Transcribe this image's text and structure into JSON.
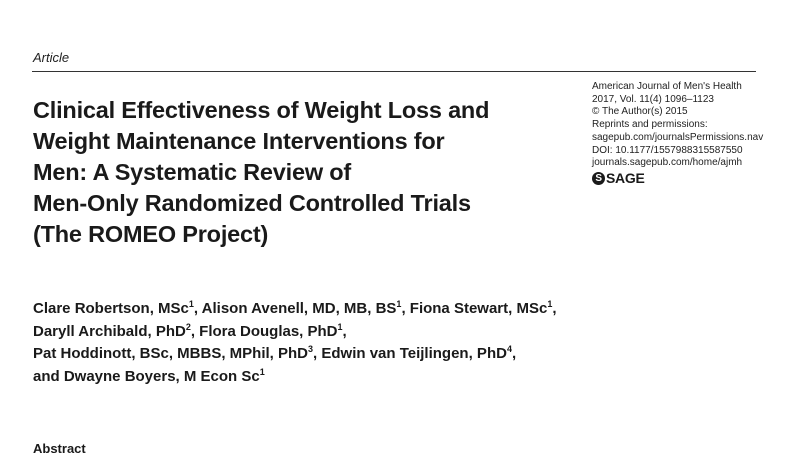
{
  "article_type": "Article",
  "journal": {
    "name": "American Journal of Men's Health",
    "citation": "2017, Vol. 11(4) 1096–1123",
    "copyright": "© The Author(s) 2015",
    "reprints_label": "Reprints and permissions:",
    "reprints_url": "sagepub.com/journalsPermissions.nav",
    "doi": "DOI: 10.1177/1557988315587550",
    "home_url": "journals.sagepub.com/home/ajmh",
    "publisher": "SAGE"
  },
  "title_lines": [
    "Clinical Effectiveness of Weight Loss and",
    "Weight Maintenance Interventions for",
    "Men: A Systematic Review of",
    "Men-Only Randomized Controlled Trials",
    "(The ROMEO Project)"
  ],
  "author_lines": [
    [
      {
        "name": "Clare Robertson, MSc",
        "aff": "1",
        "sep": ", "
      },
      {
        "name": "Alison Avenell, MD, MB, BS",
        "aff": "1",
        "sep": ", "
      },
      {
        "name": "Fiona Stewart, MSc",
        "aff": "1",
        "sep": ","
      }
    ],
    [
      {
        "name": "Daryll Archibald, PhD",
        "aff": "2",
        "sep": ", "
      },
      {
        "name": "Flora Douglas, PhD",
        "aff": "1",
        "sep": ","
      }
    ],
    [
      {
        "name": "Pat Hoddinott, BSc, MBBS, MPhil, PhD",
        "aff": "3",
        "sep": ", "
      },
      {
        "name": "Edwin van Teijlingen, PhD",
        "aff": "4",
        "sep": ","
      }
    ],
    [
      {
        "name": "and Dwayne Boyers, M Econ Sc",
        "aff": "1",
        "sep": ""
      }
    ]
  ],
  "abstract_heading": "Abstract"
}
